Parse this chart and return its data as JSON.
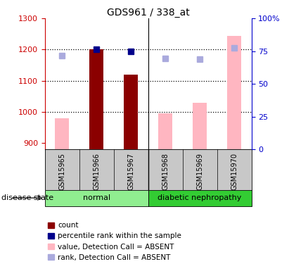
{
  "title": "GDS961 / 338_at",
  "samples": [
    "GSM15965",
    "GSM15966",
    "GSM15967",
    "GSM15968",
    "GSM15969",
    "GSM15970"
  ],
  "ylim_left": [
    880,
    1300
  ],
  "ylim_right": [
    0,
    100
  ],
  "yticks_left": [
    900,
    1000,
    1100,
    1200,
    1300
  ],
  "yticks_right": [
    0,
    25,
    50,
    75,
    100
  ],
  "yright_labels": [
    "0",
    "25",
    "50",
    "75",
    "100%"
  ],
  "bar_bottom": 880,
  "count_bars": {
    "indices": [
      1,
      2
    ],
    "values": [
      1200,
      1120
    ],
    "color": "#8b0000"
  },
  "absent_value_bars": {
    "indices": [
      0,
      3,
      4,
      5
    ],
    "values": [
      980,
      995,
      1030,
      1245
    ],
    "color": "#ffb6c1"
  },
  "absent_rank_markers": {
    "indices": [
      0,
      3,
      4,
      5
    ],
    "values": [
      1180,
      1172,
      1170,
      1205
    ],
    "color": "#aaaadd",
    "marker_size": 6
  },
  "percentile_markers": {
    "indices": [
      1,
      2
    ],
    "values": [
      1200,
      1195
    ],
    "color": "#00008b",
    "marker_size": 6
  },
  "legend_items": [
    {
      "label": "count",
      "color": "#8b0000"
    },
    {
      "label": "percentile rank within the sample",
      "color": "#00008b"
    },
    {
      "label": "value, Detection Call = ABSENT",
      "color": "#ffb6c1"
    },
    {
      "label": "rank, Detection Call = ABSENT",
      "color": "#aaaadd"
    }
  ],
  "ylabel_left_color": "#cc0000",
  "ylabel_right_color": "#0000cc",
  "disease_state_label": "disease state",
  "title_fontsize": 10,
  "background_color": "#ffffff",
  "bar_width": 0.4,
  "grid_dotted_values": [
    1000,
    1100,
    1200
  ],
  "group_normal_color": "#90ee90",
  "group_dn_color": "#33cc33",
  "sample_bg_color": "#c8c8c8"
}
